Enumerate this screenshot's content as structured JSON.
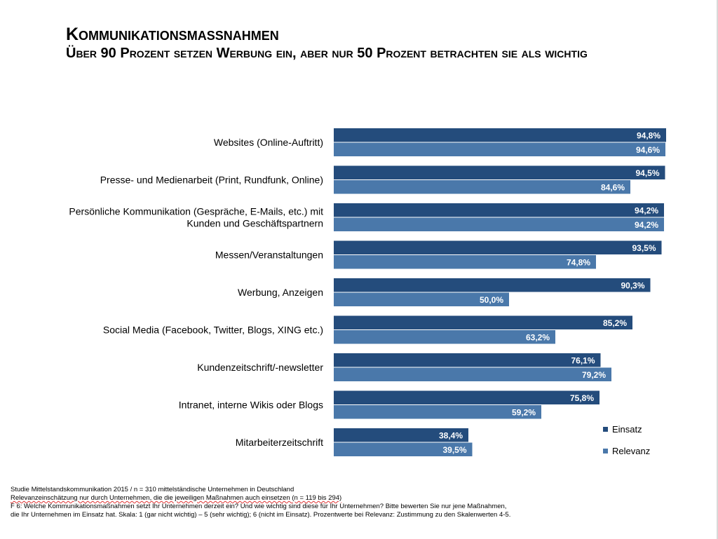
{
  "header": {
    "title": "Kommunikationsmaßnahmen",
    "subtitle": "Über 90 Prozent setzen Werbung ein, aber nur 50 Prozent betrachten sie als wichtig"
  },
  "chart_data": {
    "type": "bar",
    "orientation": "horizontal",
    "categories": [
      [
        "Websites (Online-Auftritt)"
      ],
      [
        "Presse- und Medienarbeit (Print, Rundfunk, Online)"
      ],
      [
        "Persönliche Kommunikation (Gespräche, E-Mails, etc.) mit",
        "Kunden und Geschäftspartnern"
      ],
      [
        "Messen/Veranstaltungen"
      ],
      [
        "Werbung, Anzeigen"
      ],
      [
        "Social Media (Facebook, Twitter, Blogs, XING etc.)"
      ],
      [
        "Kundenzeitschrift/-newsletter"
      ],
      [
        "Intranet, interne Wikis oder Blogs"
      ],
      [
        "Mitarbeiterzeitschrift"
      ]
    ],
    "series": [
      {
        "name": "Einsatz",
        "color": "#244c7c",
        "values": [
          94.8,
          94.5,
          94.2,
          93.5,
          90.3,
          85.2,
          76.1,
          75.8,
          38.4
        ],
        "labels": [
          "94,8%",
          "94,5%",
          "94,2%",
          "93,5%",
          "90,3%",
          "85,2%",
          "76,1%",
          "75,8%",
          "38,4%"
        ]
      },
      {
        "name": "Relevanz",
        "color": "#4a78aa",
        "values": [
          94.6,
          84.6,
          94.2,
          74.8,
          50.0,
          63.2,
          79.2,
          59.2,
          39.5
        ],
        "labels": [
          "94,6%",
          "84,6%",
          "94,2%",
          "74,8%",
          "50,0%",
          "63,2%",
          "79,2%",
          "59,2%",
          "39,5%"
        ]
      }
    ],
    "xlim": [
      0,
      100
    ],
    "grid": false,
    "legend_position": "bottom-right"
  },
  "footnotes": {
    "line1": "Studie Mittelstandskommunikation 2015 / n = 310 mittelständische Unternehmen in Deutschland",
    "line2": "Relevanzeinschätzung nur durch Unternehmen, die die jeweiligen Maßnahmen auch einsetzen (n = 119 bis 294)",
    "line3": "F 6: Welche Kommunikationsmaßnahmen setzt Ihr Unternehmen derzeit ein? Und wie wichtig sind diese für Ihr Unternehmen? Bitte bewerten Sie nur jene Maßnahmen,",
    "line4": "die Ihr Unternehmen im Einsatz hat. Skala: 1 (gar nicht wichtig) – 5 (sehr wichtig); 6 (nicht im Einsatz). Prozentwerte bei Relevanz: Zustimmung zu den Skalenwerten 4-5."
  }
}
